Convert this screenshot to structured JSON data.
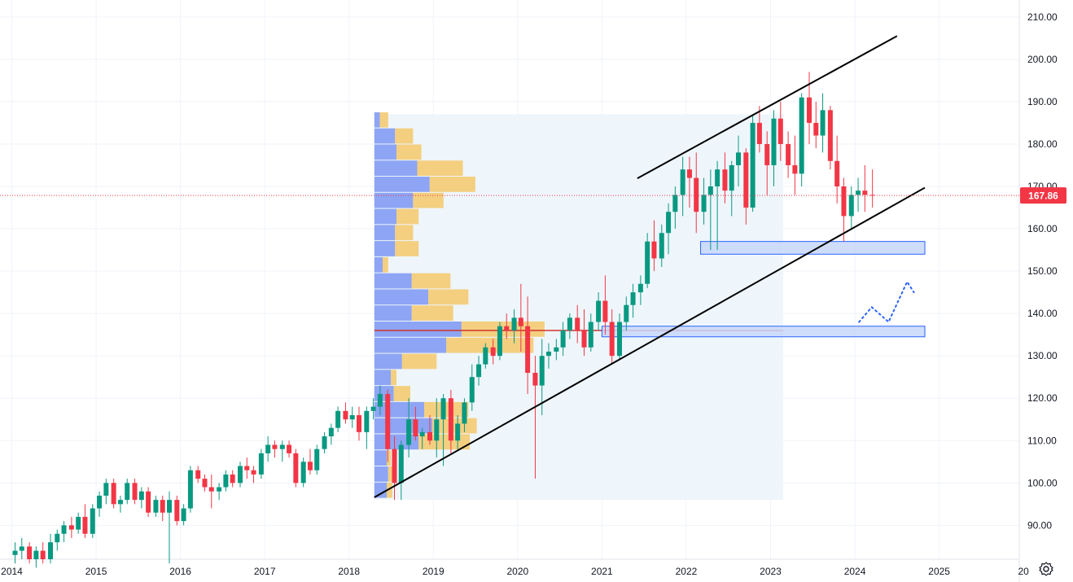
{
  "colors": {
    "up": "#089981",
    "down": "#f23645",
    "grid": "#f0f3fa",
    "axis_text": "#131722",
    "price_badge": "#f23645",
    "channel": "#000000",
    "zone_fill": "#c7d7f9",
    "zone_stroke": "#2962ff",
    "vp_up": "#7b96f2",
    "vp_down": "#f5c86a",
    "vp_range_fill": "#eef6fc",
    "poc": "#d0342c"
  },
  "icons": {
    "settings": "gear-icon"
  },
  "chart_data": {
    "type": "candlestick",
    "interval": "monthly",
    "ylim": [
      82,
      214
    ],
    "xlim": [
      2013.86,
      2025.95
    ],
    "current_price": 167.86,
    "current_price_label": "167.86",
    "y_ticks": [
      "90.00",
      "100.00",
      "110.00",
      "120.00",
      "130.00",
      "140.00",
      "150.00",
      "160.00",
      "170.00",
      "180.00",
      "190.00",
      "200.00",
      "210.00"
    ],
    "x_ticks": [
      "2014",
      "2015",
      "2016",
      "2017",
      "2018",
      "2019",
      "2020",
      "2021",
      "2022",
      "2023",
      "2024",
      "2025",
      "20"
    ],
    "candles": [
      [
        2014.0,
        83,
        86,
        81,
        84
      ],
      [
        2014.08,
        84,
        87,
        82,
        85
      ],
      [
        2014.17,
        85,
        86,
        81,
        82
      ],
      [
        2014.25,
        82,
        85,
        80,
        84
      ],
      [
        2014.33,
        84,
        86,
        81,
        82
      ],
      [
        2014.42,
        82,
        88,
        81,
        86
      ],
      [
        2014.5,
        86,
        89,
        84,
        88
      ],
      [
        2014.58,
        88,
        91,
        86,
        90
      ],
      [
        2014.67,
        90,
        92,
        87,
        89
      ],
      [
        2014.75,
        89,
        93,
        88,
        92
      ],
      [
        2014.83,
        92,
        95,
        87,
        88
      ],
      [
        2014.92,
        88,
        95,
        87,
        94
      ],
      [
        2015.0,
        94,
        98,
        92,
        97
      ],
      [
        2015.08,
        97,
        101,
        95,
        100
      ],
      [
        2015.17,
        100,
        101,
        94,
        95
      ],
      [
        2015.25,
        95,
        97,
        93,
        96
      ],
      [
        2015.33,
        96,
        101,
        95,
        100
      ],
      [
        2015.42,
        100,
        101,
        95,
        96
      ],
      [
        2015.5,
        96,
        99,
        94,
        98
      ],
      [
        2015.58,
        98,
        99,
        92,
        93
      ],
      [
        2015.67,
        93,
        97,
        92,
        96
      ],
      [
        2015.75,
        96,
        97,
        91,
        93
      ],
      [
        2015.83,
        93,
        98,
        81,
        96
      ],
      [
        2015.92,
        96,
        97,
        90,
        91
      ],
      [
        2016.0,
        91,
        95,
        90,
        94
      ],
      [
        2016.08,
        94,
        104,
        93,
        103
      ],
      [
        2016.17,
        103,
        104,
        100,
        101
      ],
      [
        2016.25,
        101,
        102,
        98,
        99
      ],
      [
        2016.33,
        99,
        102,
        94,
        98
      ],
      [
        2016.42,
        98,
        100,
        96,
        99
      ],
      [
        2016.5,
        99,
        103,
        98,
        102
      ],
      [
        2016.58,
        102,
        103,
        99,
        100
      ],
      [
        2016.67,
        100,
        105,
        99,
        104
      ],
      [
        2016.75,
        104,
        106,
        101,
        103
      ],
      [
        2016.83,
        103,
        104,
        100,
        102
      ],
      [
        2016.92,
        102,
        108,
        101,
        107
      ],
      [
        2017.0,
        107,
        111,
        105,
        109
      ],
      [
        2017.08,
        109,
        110,
        106,
        108
      ],
      [
        2017.17,
        108,
        110,
        105,
        109
      ],
      [
        2017.25,
        109,
        110,
        106,
        107
      ],
      [
        2017.33,
        107,
        108,
        99,
        100
      ],
      [
        2017.42,
        100,
        106,
        99,
        105
      ],
      [
        2017.5,
        105,
        108,
        102,
        103
      ],
      [
        2017.58,
        103,
        109,
        102,
        108
      ],
      [
        2017.67,
        108,
        112,
        107,
        111
      ],
      [
        2017.75,
        111,
        114,
        109,
        113
      ],
      [
        2017.83,
        113,
        118,
        112,
        117
      ],
      [
        2017.92,
        117,
        119,
        114,
        115
      ],
      [
        2018.0,
        115,
        118,
        113,
        116
      ],
      [
        2018.08,
        116,
        118,
        110,
        112
      ],
      [
        2018.17,
        112,
        118,
        108,
        117
      ],
      [
        2018.25,
        117,
        120,
        115,
        118
      ],
      [
        2018.33,
        118,
        123,
        116,
        121
      ],
      [
        2018.42,
        121,
        122,
        105,
        108
      ],
      [
        2018.5,
        108,
        111,
        96,
        100
      ],
      [
        2018.58,
        100,
        110,
        96,
        109
      ],
      [
        2018.67,
        109,
        120,
        106,
        115
      ],
      [
        2018.75,
        115,
        118,
        110,
        111
      ],
      [
        2018.83,
        111,
        113,
        108,
        112
      ],
      [
        2018.92,
        112,
        116,
        109,
        110
      ],
      [
        2019.0,
        110,
        120,
        106,
        115
      ],
      [
        2019.08,
        115,
        121,
        104,
        120
      ],
      [
        2019.17,
        120,
        122,
        107,
        110
      ],
      [
        2019.25,
        110,
        116,
        108,
        114
      ],
      [
        2019.33,
        114,
        120,
        112,
        119
      ],
      [
        2019.42,
        119,
        128,
        117,
        125
      ],
      [
        2019.5,
        125,
        130,
        123,
        128
      ],
      [
        2019.58,
        128,
        133,
        127,
        132
      ],
      [
        2019.67,
        132,
        134,
        128,
        130
      ],
      [
        2019.75,
        130,
        138,
        129,
        137
      ],
      [
        2019.83,
        137,
        140,
        134,
        136
      ],
      [
        2019.92,
        136,
        141,
        133,
        139
      ],
      [
        2020.0,
        139,
        147,
        131,
        137
      ],
      [
        2020.08,
        137,
        144,
        121,
        126
      ],
      [
        2020.17,
        126,
        130,
        101,
        123
      ],
      [
        2020.25,
        123,
        134,
        116,
        130
      ],
      [
        2020.33,
        130,
        133,
        127,
        131
      ],
      [
        2020.42,
        131,
        134,
        129,
        132
      ],
      [
        2020.5,
        132,
        138,
        130,
        136
      ],
      [
        2020.58,
        136,
        140,
        134,
        139
      ],
      [
        2020.67,
        139,
        142,
        133,
        136
      ],
      [
        2020.75,
        136,
        141,
        130,
        132
      ],
      [
        2020.83,
        132,
        140,
        131,
        138
      ],
      [
        2020.92,
        138,
        145,
        136,
        143
      ],
      [
        2021.0,
        143,
        149,
        135,
        138
      ],
      [
        2021.08,
        138,
        141,
        128,
        130
      ],
      [
        2021.17,
        130,
        140,
        129,
        138
      ],
      [
        2021.25,
        138,
        144,
        136,
        142
      ],
      [
        2021.33,
        142,
        147,
        139,
        145
      ],
      [
        2021.42,
        145,
        149,
        142,
        147
      ],
      [
        2021.5,
        147,
        159,
        146,
        157
      ],
      [
        2021.58,
        157,
        162,
        150,
        153
      ],
      [
        2021.67,
        153,
        161,
        151,
        159
      ],
      [
        2021.75,
        159,
        166,
        154,
        164
      ],
      [
        2021.83,
        164,
        170,
        160,
        168
      ],
      [
        2021.92,
        168,
        177,
        163,
        174
      ],
      [
        2022.0,
        174,
        177,
        165,
        172
      ],
      [
        2022.08,
        172,
        178,
        159,
        164
      ],
      [
        2022.17,
        164,
        172,
        161,
        168
      ],
      [
        2022.25,
        168,
        174,
        155,
        170
      ],
      [
        2022.33,
        170,
        176,
        155,
        174
      ],
      [
        2022.42,
        174,
        178,
        166,
        169
      ],
      [
        2022.5,
        169,
        176,
        163,
        175
      ],
      [
        2022.58,
        175,
        182,
        170,
        178
      ],
      [
        2022.67,
        178,
        179,
        161,
        165
      ],
      [
        2022.75,
        165,
        187,
        164,
        185
      ],
      [
        2022.83,
        185,
        189,
        178,
        180
      ],
      [
        2022.92,
        180,
        183,
        168,
        175
      ],
      [
        2023.0,
        175,
        188,
        170,
        186
      ],
      [
        2023.08,
        186,
        190,
        176,
        180
      ],
      [
        2023.17,
        180,
        183,
        172,
        175
      ],
      [
        2023.25,
        175,
        182,
        168,
        173
      ],
      [
        2023.33,
        173,
        192,
        170,
        191
      ],
      [
        2023.42,
        191,
        197,
        180,
        185
      ],
      [
        2023.5,
        185,
        190,
        179,
        182
      ],
      [
        2023.58,
        182,
        192,
        178,
        188
      ],
      [
        2023.67,
        188,
        189,
        174,
        176
      ],
      [
        2023.75,
        176,
        182,
        166,
        170
      ],
      [
        2023.83,
        170,
        172,
        157,
        163
      ],
      [
        2023.92,
        163,
        170,
        160,
        168
      ],
      [
        2024.0,
        168,
        172,
        164,
        169
      ],
      [
        2024.08,
        169,
        175,
        164,
        168
      ],
      [
        2024.17,
        168,
        174,
        165,
        167.86
      ]
    ],
    "channel_upper": [
      [
        2021.42,
        171.9
      ],
      [
        2024.5,
        205.5
      ]
    ],
    "channel_lower": [
      [
        2018.3,
        96.6
      ],
      [
        2024.83,
        169.7
      ]
    ],
    "zones": [
      {
        "x0": 2022.17,
        "x1": 2024.83,
        "y0": 154,
        "y1": 157
      },
      {
        "x0": 2021.0,
        "x1": 2024.83,
        "y0": 134.5,
        "y1": 137
      }
    ],
    "vp_range": {
      "x0": 2018.3,
      "x1": 2023.15,
      "y0": 96,
      "y1": 187
    },
    "vp_base_x": 2018.3,
    "volume_profile": [
      {
        "price": 98.3,
        "up": 0.09,
        "down": 0.04
      },
      {
        "price": 102.1,
        "up": 0.1,
        "down": 0.05
      },
      {
        "price": 105.9,
        "up": 0.09,
        "down": 0.03
      },
      {
        "price": 109.7,
        "up": 0.32,
        "down": 0.37
      },
      {
        "price": 113.5,
        "up": 0.42,
        "down": 0.32
      },
      {
        "price": 117.3,
        "up": 0.36,
        "down": 0.32
      },
      {
        "price": 121.1,
        "up": 0.14,
        "down": 0.12
      },
      {
        "price": 124.9,
        "up": 0.12,
        "down": 0.04
      },
      {
        "price": 128.7,
        "up": 0.2,
        "down": 0.25
      },
      {
        "price": 132.5,
        "up": 0.52,
        "down": 0.63
      },
      {
        "price": 136.3,
        "up": 0.63,
        "down": 0.6
      },
      {
        "price": 140.1,
        "up": 0.27,
        "down": 0.3
      },
      {
        "price": 143.9,
        "up": 0.39,
        "down": 0.29
      },
      {
        "price": 147.7,
        "up": 0.27,
        "down": 0.28
      },
      {
        "price": 151.5,
        "up": 0.06,
        "down": 0.04
      },
      {
        "price": 155.3,
        "up": 0.15,
        "down": 0.17
      },
      {
        "price": 159.1,
        "up": 0.15,
        "down": 0.13
      },
      {
        "price": 162.9,
        "up": 0.16,
        "down": 0.16
      },
      {
        "price": 166.7,
        "up": 0.28,
        "down": 0.22
      },
      {
        "price": 170.5,
        "up": 0.4,
        "down": 0.33
      },
      {
        "price": 174.3,
        "up": 0.31,
        "down": 0.33
      },
      {
        "price": 178.1,
        "up": 0.16,
        "down": 0.18
      },
      {
        "price": 181.9,
        "up": 0.15,
        "down": 0.13
      },
      {
        "price": 185.7,
        "up": 0.04,
        "down": 0.06
      }
    ],
    "poc": {
      "price": 136,
      "x0": 2018.3,
      "x1": 2023.15
    },
    "projection": [
      [
        2024.05,
        138
      ],
      [
        2024.2,
        141.5
      ],
      [
        2024.4,
        138
      ],
      [
        2024.62,
        147.5
      ],
      [
        2024.7,
        145
      ]
    ],
    "grid": true,
    "legend": "none"
  }
}
